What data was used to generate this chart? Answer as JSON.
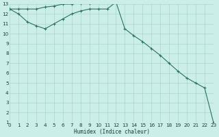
{
  "xlabel": "Humidex (Indice chaleur)",
  "bg_color": "#cceee8",
  "grid_color": "#aad4cc",
  "line_color": "#2a7060",
  "line1_x": [
    0,
    1,
    2,
    3,
    4,
    5,
    6,
    7,
    8,
    9,
    10,
    11,
    12,
    13,
    14,
    15,
    16,
    17,
    18,
    19,
    20,
    21,
    22,
    23
  ],
  "line1_y": [
    12.5,
    12.5,
    12.5,
    12.5,
    12.7,
    12.8,
    13.0,
    13.0,
    13.1,
    13.1,
    13.2,
    13.2,
    13.2,
    10.5,
    9.8,
    9.2,
    8.5,
    7.8,
    7.0,
    6.2,
    5.5,
    5.0,
    4.5,
    1.0
  ],
  "line2_x": [
    0,
    1,
    2,
    3,
    4,
    5,
    6,
    7,
    8,
    9,
    10,
    11,
    12
  ],
  "line2_y": [
    12.5,
    12.0,
    11.2,
    10.8,
    10.5,
    11.0,
    11.5,
    12.0,
    12.3,
    12.5,
    12.5,
    12.5,
    13.2
  ],
  "xlim": [
    0,
    23
  ],
  "ylim": [
    1,
    13
  ],
  "xticks": [
    0,
    1,
    2,
    3,
    4,
    5,
    6,
    7,
    8,
    9,
    10,
    11,
    12,
    13,
    14,
    15,
    16,
    17,
    18,
    19,
    20,
    21,
    22,
    23
  ],
  "yticks": [
    1,
    2,
    3,
    4,
    5,
    6,
    7,
    8,
    9,
    10,
    11,
    12,
    13
  ],
  "font_size": 5.5
}
